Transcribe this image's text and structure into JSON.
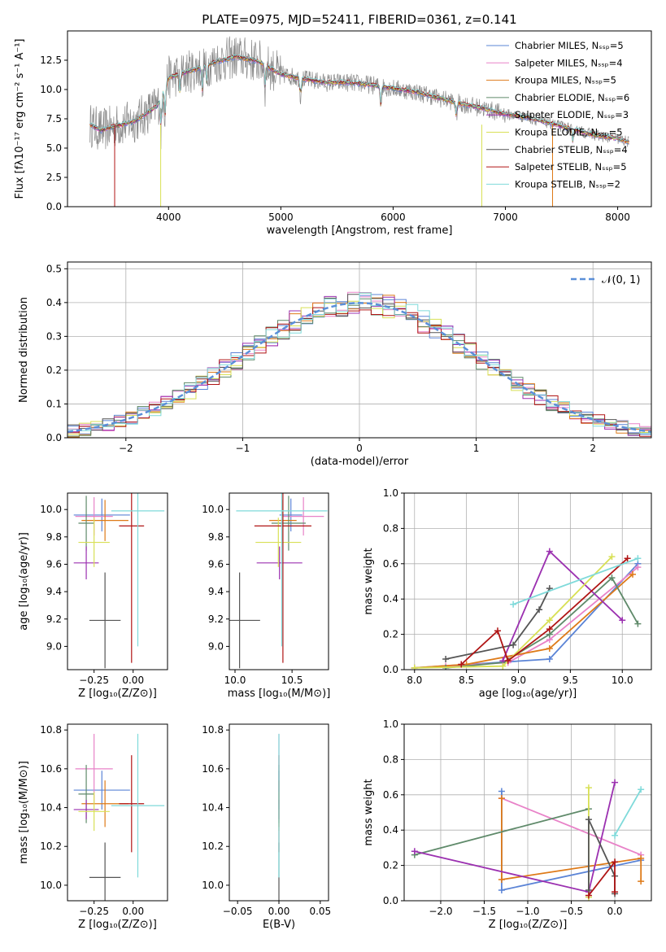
{
  "figure_title": "PLATE=0975, MJD=52411, FIBERID=0361, z=0.141",
  "colors": {
    "Chabrier MILES": "#5b84d6",
    "Salpeter MILES": "#e882c8",
    "Kroupa MILES": "#de7a18",
    "Chabrier ELODIE": "#5f8a6a",
    "Salpeter ELODIE": "#9b30b0",
    "Kroupa ELODIE": "#d8e055",
    "Chabrier STELIB": "#555555",
    "Salpeter STELIB": "#b01515",
    "Kroupa STELIB": "#7fdada"
  },
  "chart_data": [
    {
      "id": "spectrum",
      "type": "line",
      "title": "PLATE=0975, MJD=52411, FIBERID=0361, z=0.141",
      "xlabel": "wavelength [Angstrom, rest frame]",
      "ylabel": "Flux [fλ10⁻¹⁷ erg cm⁻² s⁻¹ A⁻¹]",
      "xlim": [
        3100,
        8300
      ],
      "ylim": [
        0,
        15
      ],
      "xticks": [
        4000,
        5000,
        6000,
        7000,
        8000
      ],
      "yticks": [
        0.0,
        2.5,
        5.0,
        7.5,
        10.0,
        12.5
      ],
      "grid": false,
      "legend": "top-right",
      "series": [
        {
          "name": "Chabrier MILES, Nₛₛₚ=5",
          "key": "Chabrier MILES"
        },
        {
          "name": "Salpeter MILES, Nₛₛₚ=4",
          "key": "Salpeter MILES"
        },
        {
          "name": "Kroupa MILES, Nₛₛₚ=5",
          "key": "Kroupa MILES"
        },
        {
          "name": "Chabrier ELODIE, Nₛₛₚ=6",
          "key": "Chabrier ELODIE"
        },
        {
          "name": "Salpeter ELODIE, Nₛₛₚ=3",
          "key": "Salpeter ELODIE"
        },
        {
          "name": "Kroupa ELODIE, Nₛₛₚ=5",
          "key": "Kroupa ELODIE"
        },
        {
          "name": "Chabrier STELIB, Nₛₛₚ=4",
          "key": "Chabrier STELIB"
        },
        {
          "name": "Salpeter STELIB, Nₛₛₚ=5",
          "key": "Salpeter STELIB"
        },
        {
          "name": "Kroupa STELIB, Nₛₛₚ=2",
          "key": "Kroupa STELIB"
        }
      ],
      "continuum": [
        [
          3300,
          7.0
        ],
        [
          3400,
          6.5
        ],
        [
          3500,
          6.8
        ],
        [
          3700,
          7.3
        ],
        [
          3900,
          8.6
        ],
        [
          4000,
          11.0
        ],
        [
          4200,
          11.6
        ],
        [
          4400,
          12.3
        ],
        [
          4600,
          12.8
        ],
        [
          4800,
          12.4
        ],
        [
          5000,
          11.3
        ],
        [
          5200,
          10.9
        ],
        [
          5400,
          10.6
        ],
        [
          5600,
          10.6
        ],
        [
          5800,
          10.4
        ],
        [
          6000,
          10.1
        ],
        [
          6200,
          9.8
        ],
        [
          6400,
          9.3
        ],
        [
          6600,
          8.8
        ],
        [
          6800,
          8.4
        ],
        [
          7000,
          7.9
        ],
        [
          7200,
          7.6
        ],
        [
          7400,
          7.1
        ],
        [
          7600,
          6.6
        ],
        [
          7800,
          6.1
        ],
        [
          8000,
          5.8
        ],
        [
          8100,
          5.5
        ]
      ]
    },
    {
      "id": "residuals",
      "type": "histogram",
      "xlabel": "(data-model)/error",
      "ylabel": "Normed distribution",
      "xlim": [
        -2.5,
        2.5
      ],
      "ylim": [
        0,
        0.52
      ],
      "xticks": [
        -2,
        -1,
        0,
        1,
        2
      ],
      "yticks": [
        0.0,
        0.1,
        0.2,
        0.3,
        0.4,
        0.5
      ],
      "grid": true,
      "legend": "top-right",
      "legend_label": "𝒩(0, 1)",
      "bin_width": 0.1,
      "bin_start": -2.5
    },
    {
      "id": "age-vs-z",
      "type": "errorbar",
      "xlabel": "Z [log₁₀(Z/Z⊙)]",
      "ylabel": "age  [log₁₀(age/yr)]",
      "xlim": [
        -0.42,
        0.22
      ],
      "ylim": [
        8.83,
        10.12
      ],
      "xticks": [
        -0.25,
        0.0
      ],
      "yticks": [
        9.0,
        9.2,
        9.4,
        9.6,
        9.8,
        10.0
      ],
      "points": [
        {
          "key": "Chabrier MILES",
          "x": -0.2,
          "xerr": 0.18,
          "y": 9.96,
          "yerr": 0.12
        },
        {
          "key": "Salpeter MILES",
          "x": -0.25,
          "xerr": 0.12,
          "y": 9.95,
          "yerr": 0.14
        },
        {
          "key": "Kroupa MILES",
          "x": -0.18,
          "xerr": 0.15,
          "y": 9.92,
          "yerr": 0.15
        },
        {
          "key": "Chabrier ELODIE",
          "x": -0.3,
          "xerr": 0.05,
          "y": 9.9,
          "yerr": 0.2
        },
        {
          "key": "Salpeter ELODIE",
          "x": -0.3,
          "xerr": 0.08,
          "y": 9.61,
          "yerr": 0.12
        },
        {
          "key": "Kroupa ELODIE",
          "x": -0.25,
          "xerr": 0.1,
          "y": 9.76,
          "yerr": 0.18
        },
        {
          "key": "Chabrier STELIB",
          "x": -0.18,
          "xerr": 0.1,
          "y": 9.19,
          "yerr": 0.35
        },
        {
          "key": "Salpeter STELIB",
          "x": -0.01,
          "xerr": 0.08,
          "y": 9.88,
          "yerr": 1.0
        },
        {
          "key": "Kroupa STELIB",
          "x": 0.03,
          "xerr": 0.17,
          "y": 9.99,
          "yerr": 0.99
        }
      ]
    },
    {
      "id": "age-vs-mass",
      "type": "errorbar",
      "xlabel": "mass [log₁₀(M/M⊙)]",
      "ylabel": "",
      "xlim": [
        9.95,
        10.82
      ],
      "ylim": [
        8.83,
        10.12
      ],
      "xticks": [
        10.0,
        10.5
      ],
      "yticks": [
        9.0,
        9.2,
        9.4,
        9.6,
        9.8,
        10.0
      ],
      "points": [
        {
          "key": "Chabrier MILES",
          "x": 10.49,
          "xerr": 0.1,
          "y": 9.96,
          "yerr": 0.12
        },
        {
          "key": "Salpeter MILES",
          "x": 10.6,
          "xerr": 0.18,
          "y": 9.95,
          "yerr": 0.14
        },
        {
          "key": "Kroupa MILES",
          "x": 10.42,
          "xerr": 0.12,
          "y": 9.92,
          "yerr": 0.15
        },
        {
          "key": "Chabrier ELODIE",
          "x": 10.47,
          "xerr": 0.15,
          "y": 9.9,
          "yerr": 0.2
        },
        {
          "key": "Salpeter ELODIE",
          "x": 10.39,
          "xerr": 0.2,
          "y": 9.61,
          "yerr": 0.12
        },
        {
          "key": "Kroupa ELODIE",
          "x": 10.38,
          "xerr": 0.2,
          "y": 9.76,
          "yerr": 0.18
        },
        {
          "key": "Chabrier STELIB",
          "x": 10.04,
          "xerr": 0.18,
          "y": 9.19,
          "yerr": 0.35
        },
        {
          "key": "Salpeter STELIB",
          "x": 10.42,
          "xerr": 0.25,
          "y": 9.88,
          "yerr": 1.0
        },
        {
          "key": "Kroupa STELIB",
          "x": 10.41,
          "xerr": 0.4,
          "y": 9.99,
          "yerr": 0.99
        }
      ]
    },
    {
      "id": "mass-weight-vs-age",
      "type": "line",
      "xlabel": "age  [log₁₀(age/yr)]",
      "ylabel": "mass weight",
      "xlim": [
        7.9,
        10.28
      ],
      "ylim": [
        0,
        1
      ],
      "xticks": [
        8.0,
        8.5,
        9.0,
        9.5,
        10.0
      ],
      "yticks": [
        0.0,
        0.2,
        0.4,
        0.6,
        0.8,
        1.0
      ],
      "grid": true,
      "series": [
        {
          "key": "Chabrier MILES",
          "x": [
            8.0,
            9.3,
            10.15
          ],
          "y": [
            0.01,
            0.06,
            0.6
          ]
        },
        {
          "key": "Salpeter MILES",
          "x": [
            8.3,
            8.9,
            9.3,
            10.15
          ],
          "y": [
            0.02,
            0.04,
            0.17,
            0.58
          ]
        },
        {
          "key": "Kroupa MILES",
          "x": [
            8.0,
            8.5,
            9.3,
            10.1
          ],
          "y": [
            0.01,
            0.03,
            0.12,
            0.54
          ]
        },
        {
          "key": "Chabrier ELODIE",
          "x": [
            8.3,
            8.85,
            9.3,
            9.9,
            10.15
          ],
          "y": [
            0.01,
            0.04,
            0.2,
            0.52,
            0.26
          ]
        },
        {
          "key": "Salpeter ELODIE",
          "x": [
            8.85,
            9.3,
            10.0
          ],
          "y": [
            0.05,
            0.67,
            0.28
          ]
        },
        {
          "key": "Kroupa ELODIE",
          "x": [
            8.0,
            8.85,
            9.3,
            9.9
          ],
          "y": [
            0.01,
            0.02,
            0.28,
            0.64
          ]
        },
        {
          "key": "Chabrier STELIB",
          "x": [
            8.3,
            8.95,
            9.2,
            9.3
          ],
          "y": [
            0.06,
            0.14,
            0.34,
            0.46
          ]
        },
        {
          "key": "Salpeter STELIB",
          "x": [
            8.45,
            8.8,
            8.9,
            9.3,
            10.05
          ],
          "y": [
            0.03,
            0.22,
            0.05,
            0.23,
            0.63
          ]
        },
        {
          "key": "Kroupa STELIB",
          "x": [
            8.95,
            10.15
          ],
          "y": [
            0.37,
            0.63
          ]
        }
      ]
    },
    {
      "id": "mass-vs-z",
      "type": "errorbar",
      "xlabel": "Z [log₁₀(Z/Z⊙)]",
      "ylabel": "mass [log₁₀(M/M⊙)]",
      "xlim": [
        -0.42,
        0.22
      ],
      "ylim": [
        9.92,
        10.83
      ],
      "xticks": [
        -0.25,
        0.0
      ],
      "yticks": [
        10.0,
        10.2,
        10.4,
        10.6,
        10.8
      ],
      "points": [
        {
          "key": "Chabrier MILES",
          "x": -0.2,
          "xerr": 0.18,
          "y": 10.49,
          "yerr": 0.1
        },
        {
          "key": "Salpeter MILES",
          "x": -0.25,
          "xerr": 0.12,
          "y": 10.6,
          "yerr": 0.18
        },
        {
          "key": "Kroupa MILES",
          "x": -0.18,
          "xerr": 0.15,
          "y": 10.42,
          "yerr": 0.12
        },
        {
          "key": "Chabrier ELODIE",
          "x": -0.3,
          "xerr": 0.05,
          "y": 10.47,
          "yerr": 0.15
        },
        {
          "key": "Salpeter ELODIE",
          "x": -0.3,
          "xerr": 0.08,
          "y": 10.39,
          "yerr": 0.05
        },
        {
          "key": "Kroupa ELODIE",
          "x": -0.25,
          "xerr": 0.1,
          "y": 10.38,
          "yerr": 0.1
        },
        {
          "key": "Chabrier STELIB",
          "x": -0.18,
          "xerr": 0.1,
          "y": 10.04,
          "yerr": 0.18
        },
        {
          "key": "Salpeter STELIB",
          "x": -0.01,
          "xerr": 0.08,
          "y": 10.42,
          "yerr": 0.25
        },
        {
          "key": "Kroupa STELIB",
          "x": 0.03,
          "xerr": 0.17,
          "y": 10.41,
          "yerr": 0.37
        }
      ]
    },
    {
      "id": "mass-vs-ebv",
      "type": "errorbar",
      "xlabel": "E(B-V)",
      "ylabel": "",
      "xlim": [
        -0.06,
        0.06
      ],
      "ylim": [
        9.92,
        10.83
      ],
      "xticks": [
        -0.05,
        0.0,
        0.05
      ],
      "yticks": [
        10.0,
        10.2,
        10.4,
        10.6,
        10.8
      ],
      "points": [
        {
          "key": "Chabrier MILES",
          "x": 0.0,
          "xerr": 0.0,
          "y": 10.49,
          "yerr": 0.1
        },
        {
          "key": "Salpeter MILES",
          "x": 0.0,
          "xerr": 0.0,
          "y": 10.6,
          "yerr": 0.18
        },
        {
          "key": "Kroupa MILES",
          "x": 0.0,
          "xerr": 0.0,
          "y": 10.42,
          "yerr": 0.12
        },
        {
          "key": "Chabrier ELODIE",
          "x": 0.0,
          "xerr": 0.0,
          "y": 10.47,
          "yerr": 0.15
        },
        {
          "key": "Salpeter ELODIE",
          "x": 0.0,
          "xerr": 0.0,
          "y": 10.39,
          "yerr": 0.05
        },
        {
          "key": "Kroupa ELODIE",
          "x": 0.0,
          "xerr": 0.0,
          "y": 10.38,
          "yerr": 0.1
        },
        {
          "key": "Chabrier STELIB",
          "x": 0.0,
          "xerr": 0.0,
          "y": 10.04,
          "yerr": 0.18
        },
        {
          "key": "Salpeter STELIB",
          "x": 0.0,
          "xerr": 0.0,
          "y": 10.42,
          "yerr": 0.25
        },
        {
          "key": "Kroupa STELIB",
          "x": 0.0,
          "xerr": 0.0,
          "y": 10.41,
          "yerr": 0.37
        }
      ]
    },
    {
      "id": "mass-weight-vs-z",
      "type": "line",
      "xlabel": "Z [log₁₀(Z/Z⊙)]",
      "ylabel": "mass weight",
      "xlim": [
        -2.42,
        0.42
      ],
      "ylim": [
        0,
        1
      ],
      "xticks": [
        -2.0,
        -1.5,
        -1.0,
        -0.5,
        0.0
      ],
      "yticks": [
        0.0,
        0.2,
        0.4,
        0.6,
        0.8,
        1.0
      ],
      "grid": true,
      "series": [
        {
          "key": "Chabrier MILES",
          "x": [
            -1.3,
            -1.3,
            0.3
          ],
          "y": [
            0.62,
            0.06,
            0.23
          ]
        },
        {
          "key": "Salpeter MILES",
          "x": [
            -1.3,
            0.3
          ],
          "y": [
            0.58,
            0.26
          ]
        },
        {
          "key": "Kroupa MILES",
          "x": [
            -1.3,
            -1.3,
            0.3,
            0.3
          ],
          "y": [
            0.58,
            0.12,
            0.24,
            0.11
          ]
        },
        {
          "key": "Chabrier ELODIE",
          "x": [
            -2.3,
            -0.3
          ],
          "y": [
            0.26,
            0.52
          ]
        },
        {
          "key": "Salpeter ELODIE",
          "x": [
            -2.3,
            -0.3,
            0.0
          ],
          "y": [
            0.28,
            0.05,
            0.67
          ]
        },
        {
          "key": "Kroupa ELODIE",
          "x": [
            -0.3,
            -0.3
          ],
          "y": [
            0.02,
            0.64
          ]
        },
        {
          "key": "Chabrier STELIB",
          "x": [
            -0.3,
            -0.3,
            0.0,
            0.0
          ],
          "y": [
            0.06,
            0.46,
            0.14,
            0.04
          ]
        },
        {
          "key": "Salpeter STELIB",
          "x": [
            -0.3,
            0.0,
            0.0
          ],
          "y": [
            0.03,
            0.22,
            0.05
          ]
        },
        {
          "key": "Kroupa STELIB",
          "x": [
            0.0,
            0.3
          ],
          "y": [
            0.37,
            0.63
          ]
        }
      ]
    }
  ]
}
